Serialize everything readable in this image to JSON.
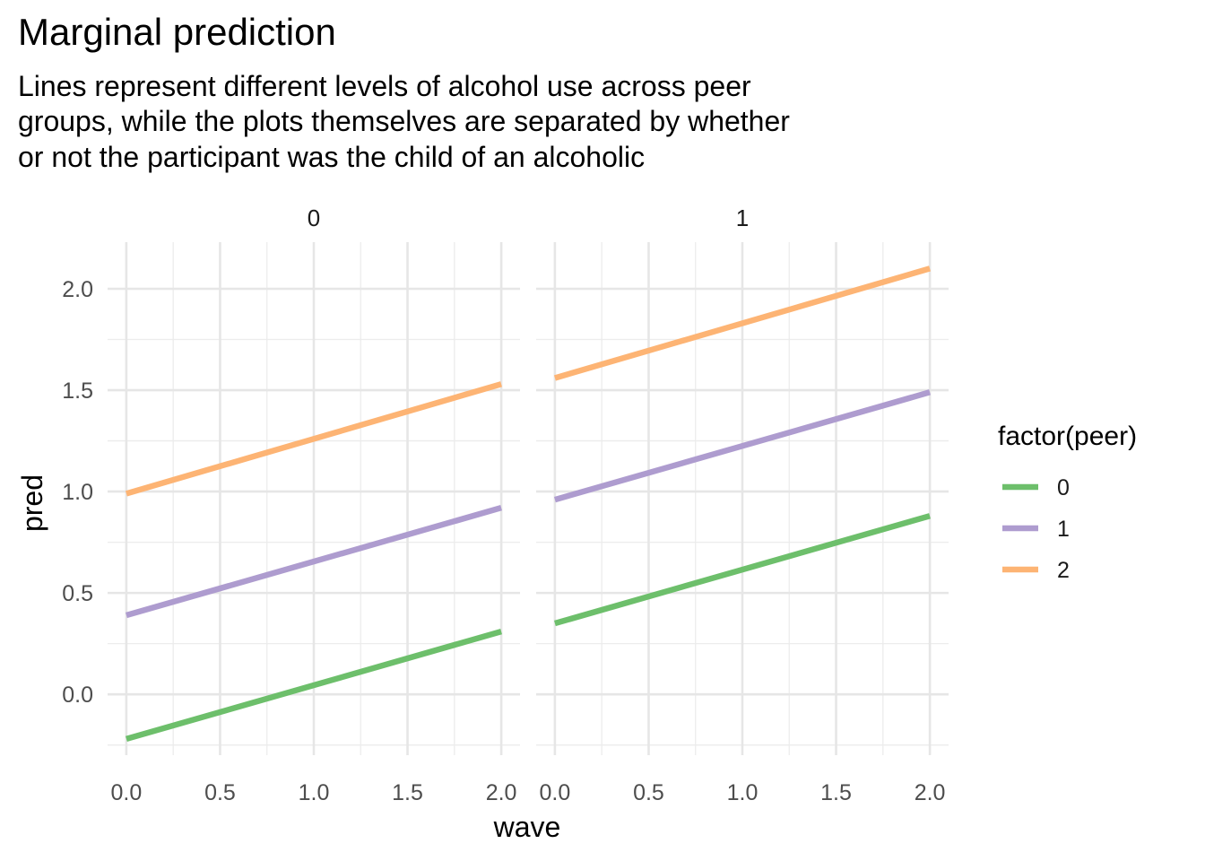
{
  "chart_data": {
    "type": "line",
    "title": "Marginal prediction",
    "subtitle_lines": [
      "Lines represent different levels of alcohol use across peer",
      "groups, while the plots themselves are separated by whether",
      "or not the participant was the child of an alcoholic"
    ],
    "xlabel": "wave",
    "ylabel": "pred",
    "xlim": [
      -0.1,
      2.1
    ],
    "ylim": [
      -0.3,
      2.23
    ],
    "x_ticks": [
      0.0,
      0.5,
      1.0,
      1.5,
      2.0
    ],
    "x_tick_labels": [
      "0.0",
      "0.5",
      "1.0",
      "1.5",
      "2.0"
    ],
    "y_ticks": [
      0.0,
      0.5,
      1.0,
      1.5,
      2.0
    ],
    "y_tick_labels": [
      "0.0",
      "0.5",
      "1.0",
      "1.5",
      "2.0"
    ],
    "grid": true,
    "legend": {
      "title": "factor(peer)",
      "position": "right",
      "entries": [
        {
          "label": "0",
          "color": "#6dbf6b"
        },
        {
          "label": "1",
          "color": "#ae9ccf"
        },
        {
          "label": "2",
          "color": "#fdb474"
        }
      ]
    },
    "facets": [
      {
        "label": "0",
        "series": [
          {
            "peer": "0",
            "color": "#6dbf6b",
            "x": [
              0,
              2
            ],
            "y": [
              -0.22,
              0.31
            ]
          },
          {
            "peer": "1",
            "color": "#ae9ccf",
            "x": [
              0,
              2
            ],
            "y": [
              0.39,
              0.92
            ]
          },
          {
            "peer": "2",
            "color": "#fdb474",
            "x": [
              0,
              2
            ],
            "y": [
              0.99,
              1.53
            ]
          }
        ]
      },
      {
        "label": "1",
        "series": [
          {
            "peer": "0",
            "color": "#6dbf6b",
            "x": [
              0,
              2
            ],
            "y": [
              0.35,
              0.88
            ]
          },
          {
            "peer": "1",
            "color": "#ae9ccf",
            "x": [
              0,
              2
            ],
            "y": [
              0.96,
              1.49
            ]
          },
          {
            "peer": "2",
            "color": "#fdb474",
            "x": [
              0,
              2
            ],
            "y": [
              1.56,
              2.1
            ]
          }
        ]
      }
    ]
  }
}
